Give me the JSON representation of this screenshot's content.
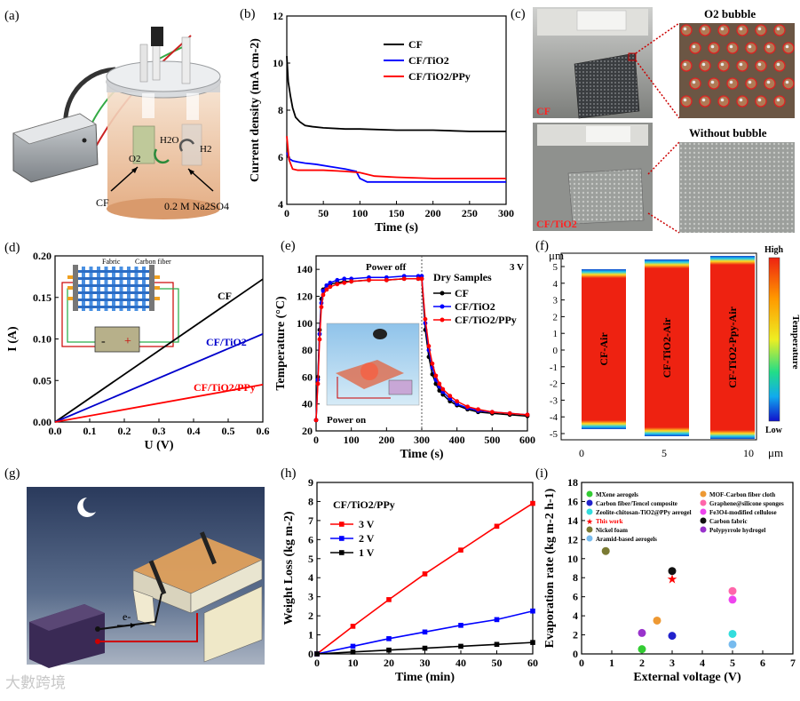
{
  "watermark": "大數跨境",
  "panel_labels": [
    "(a)",
    "(b)",
    "(c)",
    "(d)",
    "(e)",
    "(f)",
    "(g)",
    "(h)",
    "(i)"
  ],
  "panel_a": {
    "labels": {
      "cf": "CF",
      "electrolyte": "0.2 M Na2SO4",
      "o2": "O2",
      "h2o": "H2O",
      "h2": "H2"
    }
  },
  "panel_c": {
    "o2_bubble": "O2 bubble",
    "without_bubble": "Without bubble",
    "cf": "CF",
    "cf_tio2": "CF/TiO2"
  },
  "panel_f": {
    "y_unit": "μm",
    "x_unit": "μm",
    "y_ticks": [
      "5",
      "4",
      "3",
      "2",
      "1",
      "0",
      "-1",
      "-2",
      "-3",
      "-4",
      "-5"
    ],
    "x_ticks": [
      "0",
      "5",
      "10"
    ],
    "column_labels": [
      "CF-Air",
      "CF-TiO2-Air",
      "CF-TiO2-Ppy-Air"
    ],
    "colorbar_high": "High",
    "colorbar_low": "Low",
    "colorbar_label": "Temperature"
  },
  "panel_g": {
    "electron": "e-"
  },
  "chart_data": [
    {
      "id": "b",
      "type": "line",
      "title": "",
      "xlabel": "Time (s)",
      "ylabel": "Current density (mA cm-2)",
      "xlim": [
        0,
        300
      ],
      "ylim": [
        4,
        12
      ],
      "xticks": [
        0,
        50,
        100,
        150,
        200,
        250,
        300
      ],
      "yticks": [
        4,
        6,
        8,
        10,
        12
      ],
      "legend_position": "top-right",
      "series": [
        {
          "name": "CF",
          "color": "#000000",
          "x": [
            0,
            2,
            5,
            8,
            12,
            18,
            25,
            35,
            50,
            80,
            100,
            150,
            200,
            250,
            300
          ],
          "y": [
            10.3,
            9.2,
            8.6,
            8.1,
            7.7,
            7.5,
            7.35,
            7.3,
            7.25,
            7.2,
            7.2,
            7.15,
            7.15,
            7.1,
            7.1
          ]
        },
        {
          "name": "CF/TiO2",
          "color": "#0000ff",
          "x": [
            0,
            3,
            8,
            15,
            25,
            40,
            60,
            80,
            95,
            100,
            110,
            150,
            200,
            250,
            300
          ],
          "y": [
            6.2,
            5.95,
            5.85,
            5.8,
            5.75,
            5.7,
            5.6,
            5.5,
            5.4,
            5.1,
            4.95,
            4.95,
            4.95,
            4.95,
            4.95
          ]
        },
        {
          "name": "CF/TiO2/PPy",
          "color": "#ff0000",
          "x": [
            0,
            3,
            8,
            15,
            25,
            50,
            80,
            100,
            120,
            150,
            200,
            250,
            300
          ],
          "y": [
            6.9,
            5.9,
            5.5,
            5.45,
            5.45,
            5.45,
            5.4,
            5.35,
            5.2,
            5.15,
            5.1,
            5.1,
            5.1
          ]
        }
      ]
    },
    {
      "id": "d",
      "type": "line",
      "title": "",
      "xlabel": "U (V)",
      "ylabel": "I (A)",
      "xlim": [
        0,
        0.6
      ],
      "ylim": [
        0,
        0.2
      ],
      "xticks": [
        "0.0",
        "0.1",
        "0.2",
        "0.3",
        "0.4",
        "0.5",
        "0.6"
      ],
      "yticks": [
        "0.00",
        "0.05",
        "0.10",
        "0.15",
        "0.20"
      ],
      "inset_labels": {
        "fabric": "Fabric",
        "carbon_fiber": "Carbon fiber",
        "minus": "-",
        "plus": "+"
      },
      "series": [
        {
          "name": "CF",
          "color": "#000000",
          "x": [
            0,
            0.6
          ],
          "y": [
            0,
            0.172
          ]
        },
        {
          "name": "CF/TiO2",
          "color": "#0000cc",
          "x": [
            0,
            0.6
          ],
          "y": [
            0,
            0.106
          ]
        },
        {
          "name": "CF/TiO2/PPy",
          "color": "#ff0000",
          "x": [
            0,
            0.6
          ],
          "y": [
            0,
            0.045
          ]
        }
      ]
    },
    {
      "id": "e",
      "type": "line",
      "title": "Dry Samples",
      "xlabel": "Time (s)",
      "ylabel": "Temperature (°C)",
      "xlim": [
        0,
        600
      ],
      "ylim": [
        20,
        150
      ],
      "xticks": [
        0,
        100,
        200,
        300,
        400,
        500,
        600
      ],
      "yticks": [
        20,
        40,
        60,
        80,
        100,
        120,
        140
      ],
      "annotations": {
        "power_off": "Power off",
        "power_on": "Power on",
        "voltage": "3 V"
      },
      "legend_position": "top-right",
      "series": [
        {
          "name": "CF",
          "color": "#000000",
          "x": [
            0,
            5,
            10,
            15,
            20,
            30,
            40,
            60,
            80,
            100,
            150,
            200,
            250,
            290,
            300,
            310,
            320,
            330,
            340,
            350,
            360,
            380,
            400,
            430,
            460,
            500,
            550,
            600
          ],
          "y": [
            28,
            60,
            95,
            118,
            125,
            128,
            129,
            130,
            131,
            131,
            132,
            132,
            133,
            133,
            133,
            95,
            75,
            62,
            55,
            50,
            47,
            42,
            39,
            36,
            34,
            33,
            32,
            31
          ]
        },
        {
          "name": "CF/TiO2",
          "color": "#0000ff",
          "x": [
            0,
            5,
            10,
            15,
            20,
            30,
            40,
            60,
            80,
            100,
            150,
            200,
            250,
            290,
            300,
            310,
            320,
            330,
            340,
            350,
            360,
            380,
            400,
            430,
            460,
            500,
            550,
            600
          ],
          "y": [
            28,
            58,
            92,
            115,
            124,
            128,
            130,
            132,
            133,
            133,
            134,
            134,
            135,
            135,
            135,
            100,
            80,
            67,
            58,
            53,
            49,
            44,
            40,
            37,
            35,
            34,
            33,
            32
          ]
        },
        {
          "name": "CF/TiO2/PPy",
          "color": "#ff0000",
          "x": [
            0,
            5,
            10,
            15,
            20,
            30,
            40,
            60,
            80,
            100,
            150,
            200,
            250,
            290,
            300,
            310,
            320,
            330,
            340,
            350,
            360,
            380,
            400,
            430,
            460,
            500,
            550,
            600
          ],
          "y": [
            28,
            55,
            88,
            112,
            121,
            125,
            127,
            129,
            130,
            131,
            132,
            132,
            133,
            133,
            133,
            103,
            83,
            70,
            61,
            55,
            51,
            46,
            42,
            38,
            36,
            34,
            33,
            32
          ]
        }
      ]
    },
    {
      "id": "h",
      "type": "line",
      "title": "CF/TiO2/PPy",
      "xlabel": "Time (min)",
      "ylabel": "Weight Loss (kg m-2)",
      "xlim": [
        0,
        60
      ],
      "ylim": [
        0,
        9
      ],
      "xticks": [
        0,
        10,
        20,
        30,
        40,
        50,
        60
      ],
      "yticks": [
        0,
        1,
        2,
        3,
        4,
        5,
        6,
        7,
        8,
        9
      ],
      "legend_position": "top-left",
      "series": [
        {
          "name": "3 V",
          "color": "#ff0000",
          "x": [
            0,
            10,
            20,
            30,
            40,
            50,
            60
          ],
          "y": [
            0,
            1.45,
            2.85,
            4.2,
            5.45,
            6.7,
            7.9
          ]
        },
        {
          "name": "2 V",
          "color": "#0000ff",
          "x": [
            0,
            10,
            20,
            30,
            40,
            50,
            60
          ],
          "y": [
            0,
            0.4,
            0.8,
            1.15,
            1.5,
            1.8,
            2.25
          ]
        },
        {
          "name": "1 V",
          "color": "#000000",
          "x": [
            0,
            10,
            20,
            30,
            40,
            50,
            60
          ],
          "y": [
            0,
            0.1,
            0.2,
            0.3,
            0.4,
            0.5,
            0.6
          ]
        }
      ]
    },
    {
      "id": "i",
      "type": "scatter",
      "title": "",
      "xlabel": "External voltage (V)",
      "ylabel": "Evaporation rate (kg m-2 h-1)",
      "xlim": [
        0,
        7
      ],
      "ylim": [
        0,
        18
      ],
      "xticks": [
        0,
        1,
        2,
        3,
        4,
        5,
        6,
        7
      ],
      "yticks": [
        0,
        2,
        4,
        6,
        8,
        10,
        12,
        14,
        16,
        18
      ],
      "legend_position": "top",
      "series": [
        {
          "name": "MXene aerogels",
          "color": "#33cc33",
          "x": [
            2
          ],
          "y": [
            0.5
          ]
        },
        {
          "name": "Carbon fiber/Tencel composite",
          "color": "#2222cc",
          "x": [
            3
          ],
          "y": [
            1.9
          ]
        },
        {
          "name": "Zeolite-chitosan-TiO2@PPy aerogel",
          "color": "#33dddd",
          "x": [
            5
          ],
          "y": [
            2.1
          ]
        },
        {
          "name": "This work",
          "color": "#ff0000",
          "x": [
            3
          ],
          "y": [
            7.9
          ]
        },
        {
          "name": "Nickel foam",
          "color": "#7a7a33",
          "x": [
            0.8
          ],
          "y": [
            10.8
          ]
        },
        {
          "name": "Aramid-based aerogels",
          "color": "#77bbee",
          "x": [
            5
          ],
          "y": [
            1.0
          ]
        },
        {
          "name": "MOF-Carbon fiber cloth",
          "color": "#ee9933",
          "x": [
            2.5
          ],
          "y": [
            3.5
          ]
        },
        {
          "name": "Graphene@silicone sponges",
          "color": "#ff66aa",
          "x": [
            5
          ],
          "y": [
            6.6
          ]
        },
        {
          "name": "Fe3O4-modified cellulose",
          "color": "#ee44ee",
          "x": [
            5
          ],
          "y": [
            5.7
          ]
        },
        {
          "name": "Carbon fabric",
          "color": "#111111",
          "x": [
            3
          ],
          "y": [
            8.7
          ]
        },
        {
          "name": "Polypyrrole hydrogel",
          "color": "#9933cc",
          "x": [
            2
          ],
          "y": [
            2.2
          ]
        }
      ]
    }
  ]
}
